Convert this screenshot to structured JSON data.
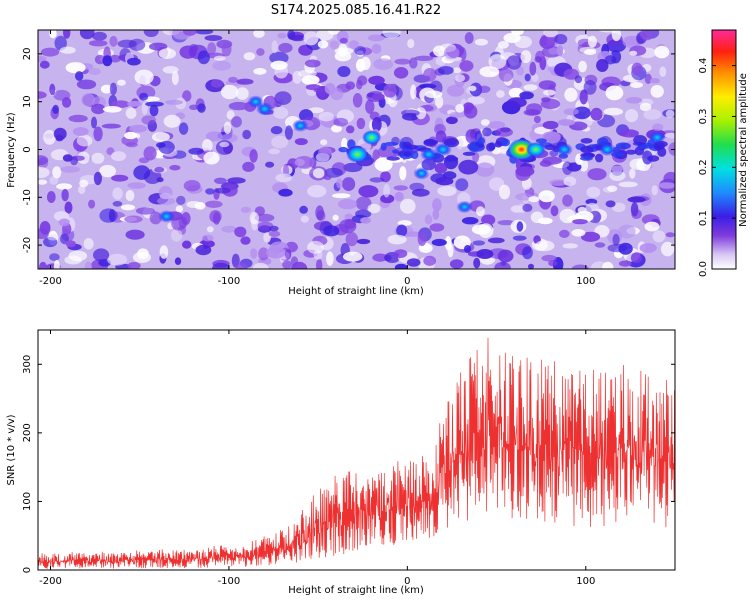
{
  "title": "S174.2025.085.16.41.R22",
  "chart_data": [
    {
      "type": "heatmap",
      "xlabel": "Height of straight line (km)",
      "ylabel": "Frequency (Hz)",
      "xlim": [
        -207,
        150
      ],
      "ylim": [
        -25,
        25
      ],
      "x_ticks": [
        -200,
        -100,
        0,
        100
      ],
      "y_ticks": [
        -20,
        -10,
        0,
        10,
        20
      ],
      "colorbar": {
        "label": "Normalized spectral amplitude",
        "range": [
          0,
          0.47
        ],
        "ticks": [
          0.0,
          0.1,
          0.2,
          0.3,
          0.4
        ],
        "tick_labels": [
          "0.0",
          "0.1",
          "0.2",
          "0.3",
          "0.4"
        ]
      },
      "peaks": [
        {
          "x": -28,
          "y": -1,
          "amp": 0.26
        },
        {
          "x": -20,
          "y": 2.5,
          "amp": 0.17
        },
        {
          "x": 64,
          "y": 0,
          "amp": 0.42
        },
        {
          "x": 72,
          "y": 0,
          "amp": 0.18
        },
        {
          "x": 20,
          "y": 0,
          "amp": 0.14
        },
        {
          "x": 12,
          "y": -1,
          "amp": 0.12
        },
        {
          "x": 88,
          "y": 0,
          "amp": 0.12
        },
        {
          "x": 112,
          "y": 0,
          "amp": 0.12
        },
        {
          "x": -80,
          "y": 8.5,
          "amp": 0.12
        },
        {
          "x": -60,
          "y": 5,
          "amp": 0.1
        },
        {
          "x": -135,
          "y": -14,
          "amp": 0.1
        },
        {
          "x": 32,
          "y": -12,
          "amp": 0.09
        },
        {
          "x": 8,
          "y": -5,
          "amp": 0.1
        },
        {
          "x": -85,
          "y": 10,
          "amp": 0.1
        },
        {
          "x": 140,
          "y": 2.5,
          "amp": 0.1
        }
      ]
    },
    {
      "type": "line",
      "xlabel": "Height of straight line (km)",
      "ylabel": "SNR (10 * v/v)",
      "xlim": [
        -207,
        150
      ],
      "ylim": [
        0,
        350
      ],
      "x_ticks": [
        -200,
        -100,
        0,
        100
      ],
      "y_ticks": [
        0,
        100,
        200,
        300
      ],
      "color": "#ee3030",
      "envelope": [
        {
          "x": -207,
          "low": 2,
          "high": 25
        },
        {
          "x": -160,
          "low": 2,
          "high": 28
        },
        {
          "x": -120,
          "low": 3,
          "high": 32
        },
        {
          "x": -90,
          "low": 4,
          "high": 40
        },
        {
          "x": -70,
          "low": 8,
          "high": 60
        },
        {
          "x": -58,
          "low": 10,
          "high": 90
        },
        {
          "x": -50,
          "low": 15,
          "high": 120
        },
        {
          "x": -40,
          "low": 20,
          "high": 140
        },
        {
          "x": -20,
          "low": 30,
          "high": 150
        },
        {
          "x": 0,
          "low": 40,
          "high": 165
        },
        {
          "x": 15,
          "low": 45,
          "high": 170
        },
        {
          "x": 22,
          "low": 60,
          "high": 270
        },
        {
          "x": 45,
          "low": 80,
          "high": 340
        },
        {
          "x": 70,
          "low": 70,
          "high": 310
        },
        {
          "x": 100,
          "low": 60,
          "high": 300
        },
        {
          "x": 130,
          "low": 60,
          "high": 300
        },
        {
          "x": 150,
          "low": 60,
          "high": 270
        }
      ]
    }
  ]
}
